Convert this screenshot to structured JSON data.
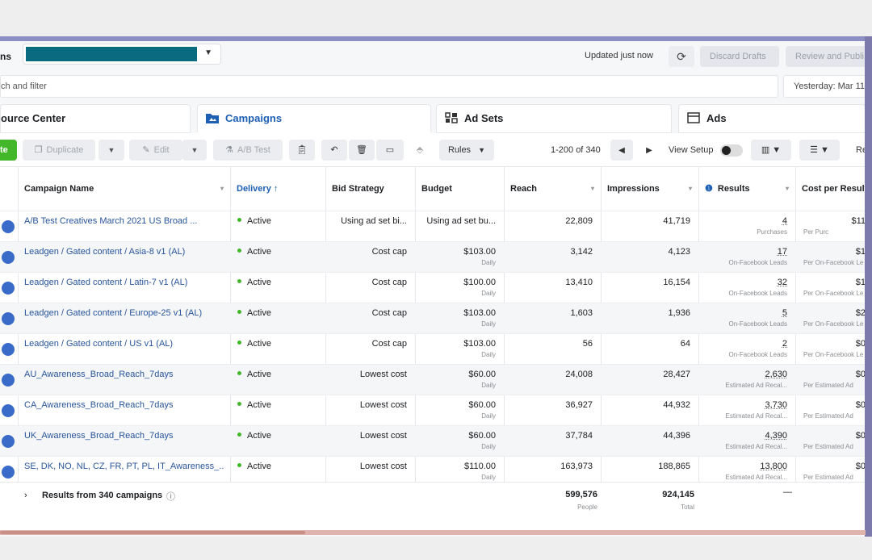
{
  "header": {
    "truncated_title": "ns",
    "updated_text": "Updated just now",
    "discard_label": "Discard Drafts",
    "review_label": "Review and Publi"
  },
  "search": {
    "placeholder": "ch and filter",
    "date_range": "Yesterday: Mar 11"
  },
  "tabs": [
    {
      "label": "ource Center",
      "icon": "none"
    },
    {
      "label": "Campaigns",
      "icon": "folder-icon"
    },
    {
      "label": "Ad Sets",
      "icon": "grid-icon"
    },
    {
      "label": "Ads",
      "icon": "ad-icon"
    }
  ],
  "toolbar": {
    "create_label": "te",
    "duplicate_label": "Duplicate",
    "edit_label": "Edit",
    "ab_label": "A/B Test",
    "rules_label": "Rules",
    "pager_text": "1-200 of 340",
    "view_setup_label": "View Setup",
    "reports_label": "Re"
  },
  "columns": {
    "name": "Campaign Name",
    "delivery": "Delivery ↑",
    "bid": "Bid Strategy",
    "budget": "Budget",
    "reach": "Reach",
    "impressions": "Impressions",
    "results": "Results",
    "cost": "Cost per Result"
  },
  "rows": [
    {
      "name": "A/B Test Creatives March 2021 US Broad ...",
      "delivery": "Active",
      "bid": "Using ad set bi...",
      "budget": "Using ad set bu...",
      "budget_sub": "",
      "reach": "22,809",
      "impressions": "41,719",
      "results": "4",
      "results_sub": "Purchases",
      "cost": "$11",
      "cost_sub": "Per Purc"
    },
    {
      "name": "Leadgen / Gated content / Asia-8 v1 (AL)",
      "delivery": "Active",
      "bid": "Cost cap",
      "budget": "$103.00",
      "budget_sub": "Daily",
      "reach": "3,142",
      "impressions": "4,123",
      "results": "17",
      "results_sub": "On-Facebook Leads",
      "cost": "$1",
      "cost_sub": "Per On-Facebook Le"
    },
    {
      "name": "Leadgen / Gated content / Latin-7 v1 (AL)",
      "delivery": "Active",
      "bid": "Cost cap",
      "budget": "$100.00",
      "budget_sub": "Daily",
      "reach": "13,410",
      "impressions": "16,154",
      "results": "32",
      "results_sub": "On-Facebook Leads",
      "cost": "$1",
      "cost_sub": "Per On-Facebook Le"
    },
    {
      "name": "Leadgen / Gated content / Europe-25 v1 (AL)",
      "delivery": "Active",
      "bid": "Cost cap",
      "budget": "$103.00",
      "budget_sub": "Daily",
      "reach": "1,603",
      "impressions": "1,936",
      "results": "5",
      "results_sub": "On-Facebook Leads",
      "cost": "$2",
      "cost_sub": "Per On-Facebook Le"
    },
    {
      "name": "Leadgen / Gated content / US v1 (AL)",
      "delivery": "Active",
      "bid": "Cost cap",
      "budget": "$103.00",
      "budget_sub": "Daily",
      "reach": "56",
      "impressions": "64",
      "results": "2",
      "results_sub": "On-Facebook Leads",
      "cost": "$0",
      "cost_sub": "Per On-Facebook Le"
    },
    {
      "name": "AU_Awareness_Broad_Reach_7days",
      "delivery": "Active",
      "bid": "Lowest cost",
      "budget": "$60.00",
      "budget_sub": "Daily",
      "reach": "24,008",
      "impressions": "28,427",
      "results": "2,630",
      "results_sub": "Estimated Ad Recal...",
      "cost": "$0",
      "cost_sub": "Per Estimated Ad"
    },
    {
      "name": "CA_Awareness_Broad_Reach_7days",
      "delivery": "Active",
      "bid": "Lowest cost",
      "budget": "$60.00",
      "budget_sub": "Daily",
      "reach": "36,927",
      "impressions": "44,932",
      "results": "3,730",
      "results_sub": "Estimated Ad Recal...",
      "cost": "$0",
      "cost_sub": "Per Estimated Ad"
    },
    {
      "name": "UK_Awareness_Broad_Reach_7days",
      "delivery": "Active",
      "bid": "Lowest cost",
      "budget": "$60.00",
      "budget_sub": "Daily",
      "reach": "37,784",
      "impressions": "44,396",
      "results": "4,390",
      "results_sub": "Estimated Ad Recal...",
      "cost": "$0",
      "cost_sub": "Per Estimated Ad"
    },
    {
      "name": "SE, DK, NO, NL, CZ, FR, PT, PL, IT_Awareness_...",
      "delivery": "Active",
      "bid": "Lowest cost",
      "budget": "$110.00",
      "budget_sub": "Daily",
      "reach": "163,973",
      "impressions": "188,865",
      "results": "13,800",
      "results_sub": "Estimated Ad Recal...",
      "cost": "$0",
      "cost_sub": "Per Estimated Ad"
    }
  ],
  "totals": {
    "label": "Results from 340 campaigns",
    "reach": "599,576",
    "reach_sub": "People",
    "impressions": "924,145",
    "impressions_sub": "Total",
    "results": "—"
  },
  "colors": {
    "accent": "#1d5fb3",
    "create_green": "#42b72a",
    "account_bar": "#0a6a7f",
    "active_dot": "#42b72a"
  }
}
